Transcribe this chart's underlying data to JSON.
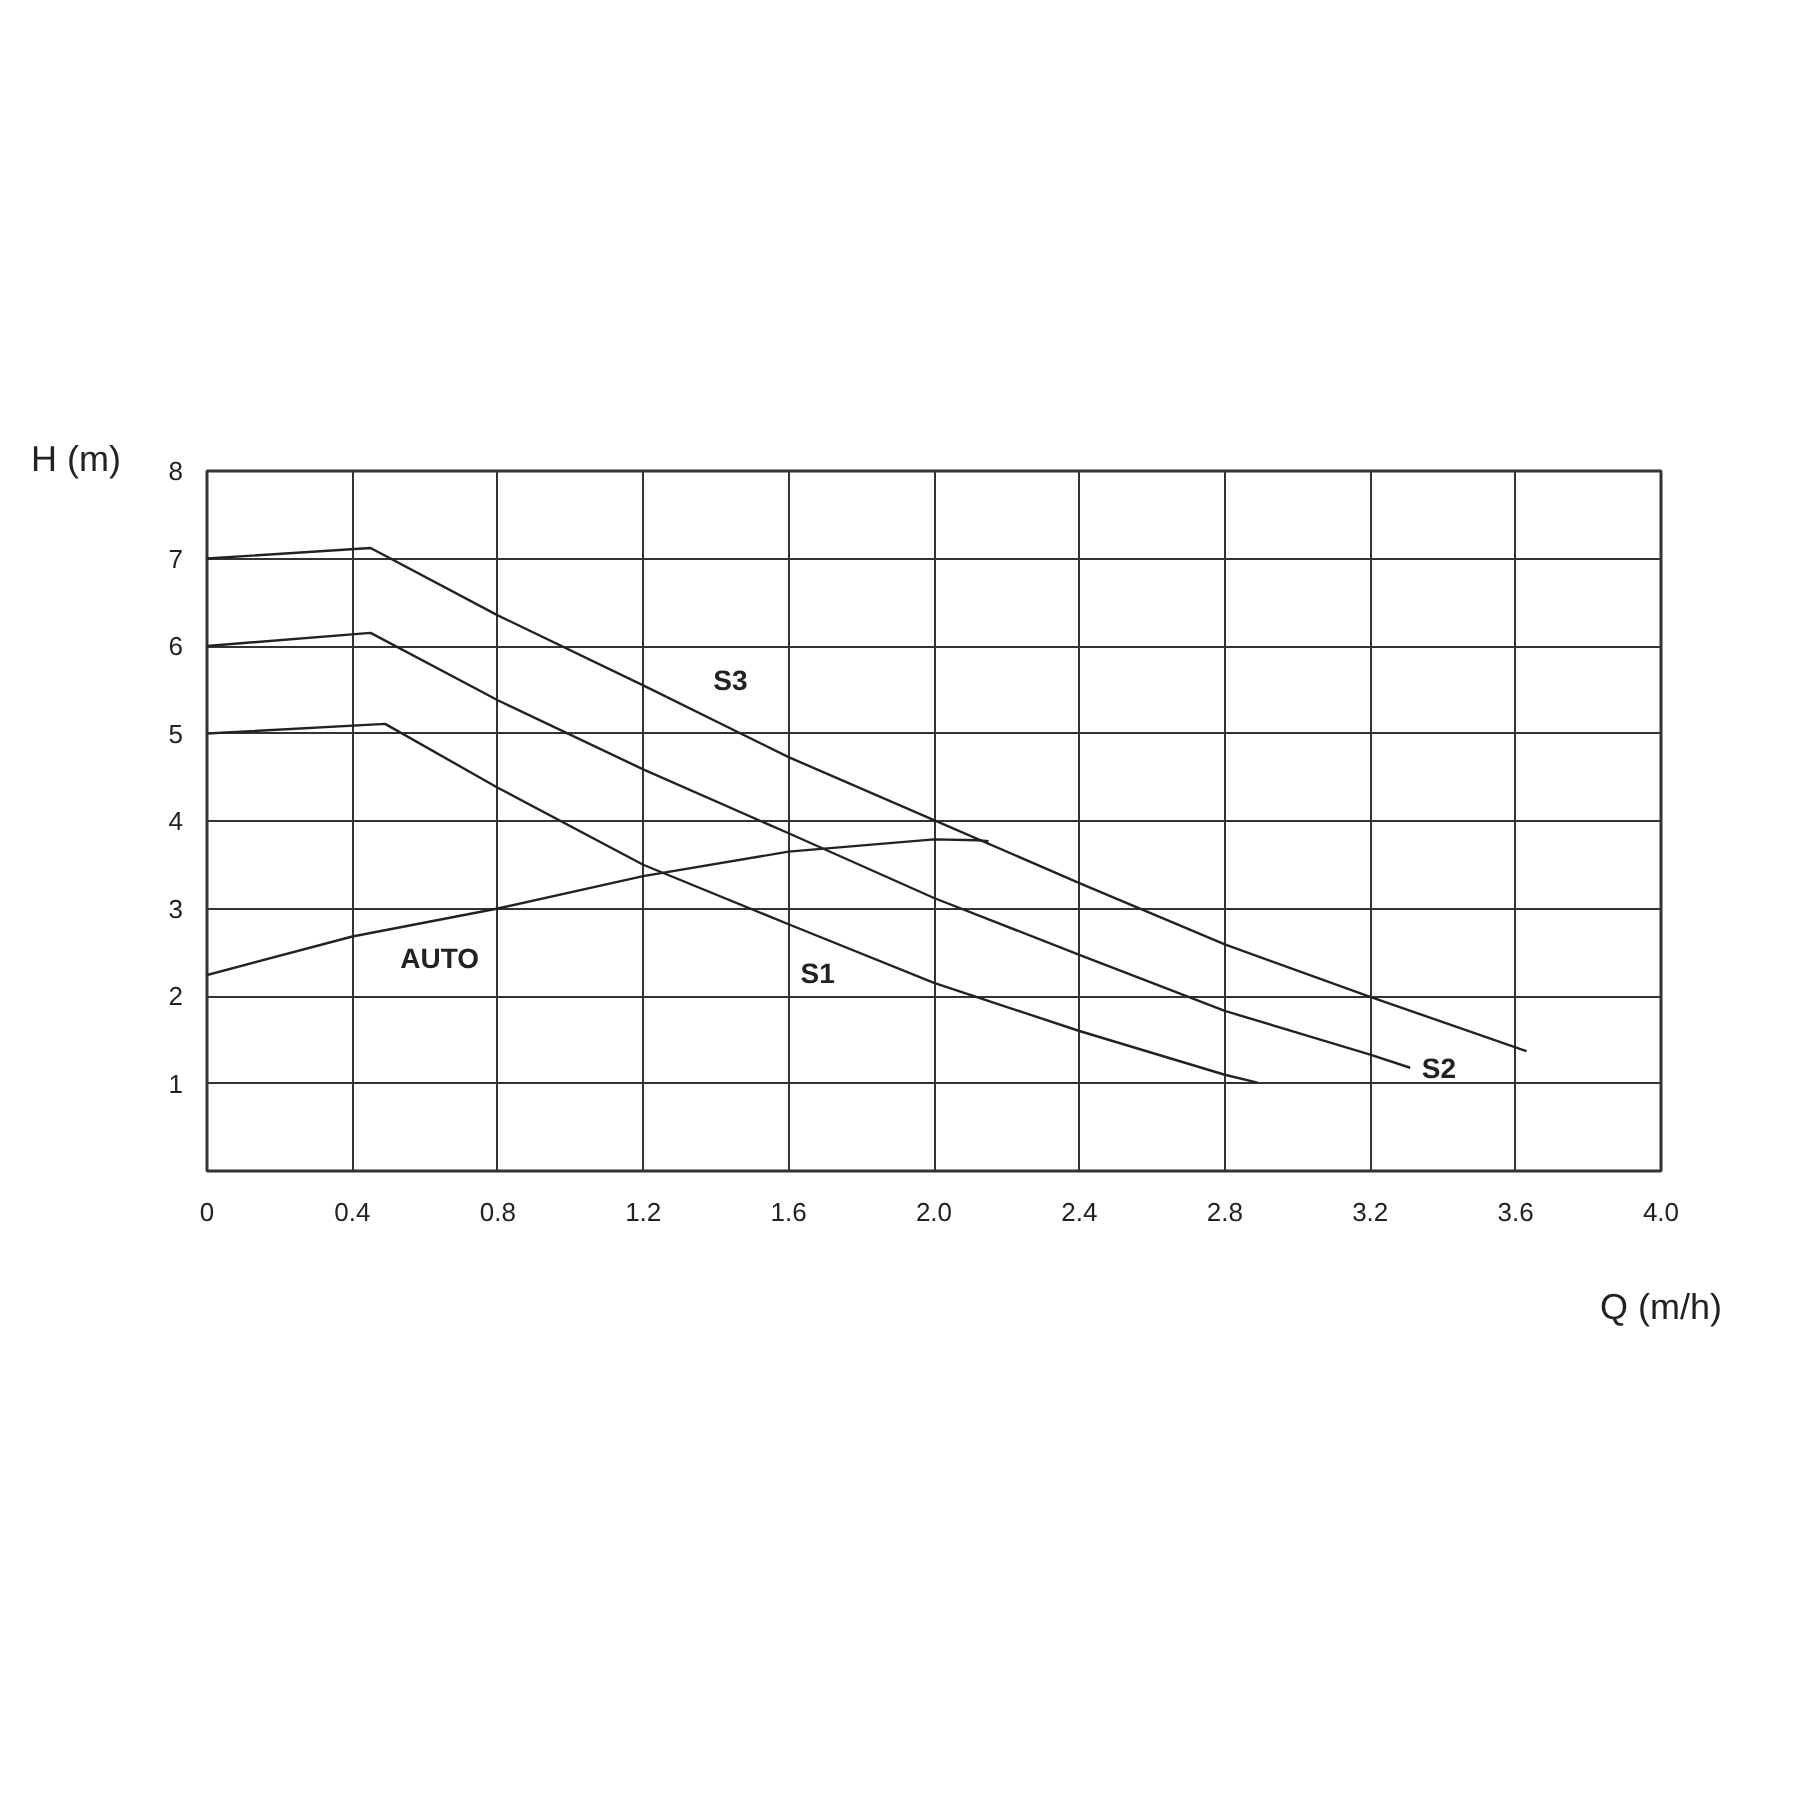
{
  "chart_data": {
    "type": "line",
    "xlabel": "Q (m/h)",
    "ylabel": "H (m)",
    "series": [
      {
        "name": "S3",
        "color": "#222222",
        "x": [
          0,
          0.45,
          0.8,
          1.2,
          1.6,
          2.0,
          2.4,
          2.8,
          3.2,
          3.63
        ],
        "values": [
          7,
          7.12,
          6.35,
          5.55,
          4.73,
          4.01,
          3.29,
          2.59,
          1.99,
          1.37
        ]
      },
      {
        "name": "S2",
        "color": "#222222",
        "x": [
          0,
          0.45,
          0.8,
          1.2,
          1.6,
          2.0,
          2.4,
          2.8,
          3.2,
          3.31
        ],
        "values": [
          6,
          6.15,
          5.38,
          4.59,
          3.86,
          3.12,
          2.47,
          1.83,
          1.33,
          1.18
        ]
      },
      {
        "name": "S1",
        "color": "#222222",
        "x": [
          0,
          0.49,
          0.8,
          1.2,
          1.6,
          2.0,
          2.4,
          2.8,
          2.89
        ],
        "values": [
          5,
          5.11,
          4.38,
          3.5,
          2.82,
          2.15,
          1.6,
          1.1,
          1.01
        ]
      },
      {
        "name": "AUTO",
        "color": "#222222",
        "x": [
          0,
          0.4,
          0.8,
          1.2,
          1.6,
          2.0,
          2.12,
          2.15
        ],
        "values": [
          2.24,
          2.68,
          3.0,
          3.37,
          3.65,
          3.79,
          3.78,
          3.77
        ]
      }
    ],
    "xlim": [
      0,
      4.0
    ],
    "ylim": [
      0,
      8
    ],
    "xticks": [
      0,
      0.4,
      0.8,
      1.2,
      1.6,
      {
        "value": 2.0,
        "label": "2.0"
      },
      2.4,
      2.8,
      3.2,
      3.6,
      {
        "value": 4.0,
        "label": "4.0"
      }
    ],
    "yticks": [
      1,
      2,
      3,
      4,
      5,
      6,
      7,
      8
    ],
    "grid": true,
    "marker": "none",
    "line_style": "solid"
  }
}
